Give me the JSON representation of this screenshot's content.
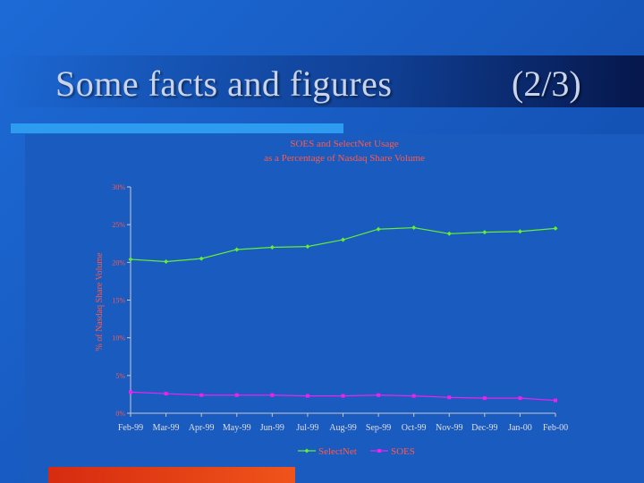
{
  "slide": {
    "title": "Some facts and figures",
    "number": "(2/3)"
  },
  "colors": {
    "background": "#1a5fc4",
    "title_text": "#c9d3ea",
    "chart_text": "#ff5a4a",
    "tick_text": "#e0dde3",
    "selectnet": "#66ee33",
    "soes": "#ee22ee",
    "accent_blue": "#2d9cf0",
    "accent_red": "#e23a14"
  },
  "chart_data": {
    "type": "line",
    "title_lines": [
      "SOES and SelectNet Usage",
      "as a Percentage of Nasdaq Share Volume"
    ],
    "ylabel": "% of Nasdaq Share Volume",
    "xlabel": "",
    "categories": [
      "Feb-99",
      "Mar-99",
      "Apr-99",
      "May-99",
      "Jun-99",
      "Jul-99",
      "Aug-99",
      "Sep-99",
      "Oct-99",
      "Nov-99",
      "Dec-99",
      "Jan-00",
      "Feb-00"
    ],
    "ylim": [
      0,
      30
    ],
    "yticks": [
      0,
      5,
      10,
      15,
      20,
      25,
      30
    ],
    "ytick_labels": [
      "0%",
      "5%",
      "10%",
      "15%",
      "20%",
      "25%",
      "30%"
    ],
    "grid": false,
    "legend_position": "bottom",
    "series": [
      {
        "name": "SelectNet",
        "color": "#66ee33",
        "marker": "diamond",
        "values": [
          20.4,
          20.1,
          20.5,
          21.7,
          22.0,
          22.1,
          23.0,
          24.4,
          24.6,
          23.8,
          24.0,
          24.1,
          24.5
        ]
      },
      {
        "name": "SOES",
        "color": "#ee22ee",
        "marker": "square",
        "values": [
          2.8,
          2.6,
          2.4,
          2.4,
          2.4,
          2.3,
          2.3,
          2.4,
          2.3,
          2.1,
          2.0,
          2.0,
          1.7
        ]
      }
    ]
  }
}
